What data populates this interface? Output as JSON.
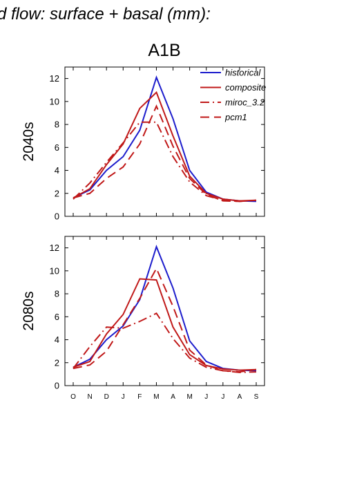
{
  "figure": {
    "title": "d flow: surface + basal (mm):",
    "scenario": "A1B"
  },
  "chart_data": [
    {
      "type": "line",
      "row_label": "2040s",
      "categories": [
        "O",
        "N",
        "D",
        "J",
        "F",
        "M",
        "A",
        "M",
        "J",
        "J",
        "A",
        "S"
      ],
      "ylim": [
        0,
        13
      ],
      "yticks": [
        0,
        2,
        4,
        6,
        8,
        10,
        12
      ],
      "legend": "top-right",
      "series": [
        {
          "name": "historical",
          "color": "#1c1ccc",
          "dash": "solid",
          "values": [
            1.6,
            2.3,
            4.0,
            5.2,
            7.5,
            12.1,
            8.5,
            4.0,
            2.1,
            1.5,
            1.35,
            1.3
          ]
        },
        {
          "name": "composite",
          "color": "#c01818",
          "dash": "solid",
          "values": [
            1.6,
            2.4,
            4.5,
            6.3,
            9.4,
            10.8,
            7.0,
            3.5,
            2.0,
            1.5,
            1.35,
            1.4
          ]
        },
        {
          "name": "miroc_3.2",
          "color": "#c01818",
          "dash": "dashdot",
          "values": [
            1.5,
            2.9,
            4.7,
            6.4,
            8.2,
            8.2,
            5.2,
            3.0,
            1.8,
            1.4,
            1.3,
            1.4
          ]
        },
        {
          "name": "pcm1",
          "color": "#c01818",
          "dash": "dashed",
          "values": [
            1.6,
            2.0,
            3.3,
            4.3,
            6.3,
            9.6,
            6.1,
            3.3,
            1.9,
            1.35,
            1.3,
            1.4
          ]
        }
      ]
    },
    {
      "type": "line",
      "row_label": "2080s",
      "categories": [
        "O",
        "N",
        "D",
        "J",
        "F",
        "M",
        "A",
        "M",
        "J",
        "J",
        "A",
        "S"
      ],
      "ylim": [
        0,
        13
      ],
      "yticks": [
        0,
        2,
        4,
        6,
        8,
        10,
        12
      ],
      "legend": "none",
      "series": [
        {
          "name": "historical",
          "color": "#1c1ccc",
          "dash": "solid",
          "values": [
            1.6,
            2.3,
            4.0,
            5.2,
            7.5,
            12.1,
            8.5,
            3.9,
            2.1,
            1.5,
            1.35,
            1.3
          ]
        },
        {
          "name": "composite",
          "color": "#c01818",
          "dash": "solid",
          "values": [
            1.6,
            2.1,
            4.5,
            6.2,
            9.3,
            9.2,
            5.1,
            2.7,
            1.75,
            1.45,
            1.35,
            1.4
          ]
        },
        {
          "name": "miroc_3.2",
          "color": "#c01818",
          "dash": "dashdot",
          "values": [
            1.5,
            3.4,
            5.1,
            5.0,
            5.6,
            6.3,
            4.1,
            2.4,
            1.6,
            1.3,
            1.15,
            1.2
          ]
        },
        {
          "name": "pcm1",
          "color": "#c01818",
          "dash": "dashed",
          "values": [
            1.5,
            1.8,
            3.0,
            5.3,
            7.6,
            10.2,
            6.9,
            3.1,
            1.8,
            1.3,
            1.2,
            1.4
          ]
        }
      ]
    }
  ]
}
